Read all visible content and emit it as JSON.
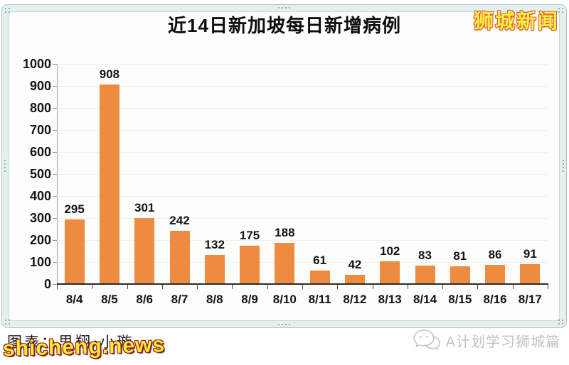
{
  "header": {
    "logo_text": "狮城新闻",
    "logo_fill_color": "#ffef45",
    "logo_outline_color": "#e05a3a"
  },
  "chart_data": {
    "type": "bar",
    "title": "近14日新加坡每日新增病例",
    "categories": [
      "8/4",
      "8/5",
      "8/6",
      "8/7",
      "8/8",
      "8/9",
      "8/10",
      "8/11",
      "8/12",
      "8/13",
      "8/14",
      "8/15",
      "8/16",
      "8/17"
    ],
    "values": [
      295,
      908,
      301,
      242,
      132,
      175,
      188,
      61,
      42,
      102,
      83,
      81,
      86,
      91
    ],
    "xlabel": "",
    "ylabel": "",
    "ylim": [
      0,
      1000
    ],
    "ytick_step": 100,
    "bar_color": "#ed8b40",
    "grid": true,
    "legend": "none",
    "data_labels": true
  },
  "footer": {
    "credit_text": "图表：思翔•小璇",
    "watermark_text": "shicheng.news",
    "watermark_fill_color": "#f9e93c",
    "wechat_label": "A计划学习狮城篇"
  }
}
